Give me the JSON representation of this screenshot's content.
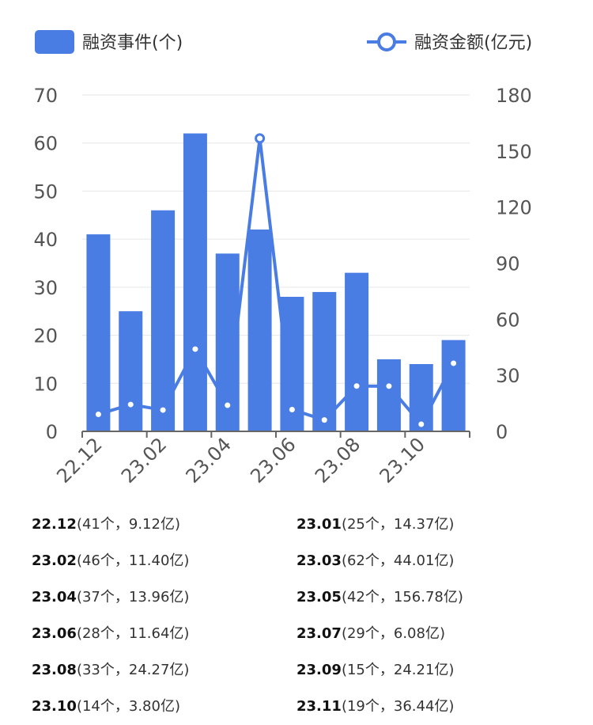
{
  "legend": {
    "bar_label": "融资事件(个)",
    "line_label": "融资金额(亿元)"
  },
  "colors": {
    "bar": "#4a7de3",
    "line": "#4a7de3",
    "grid": "#e6e6e6",
    "axis": "#666666"
  },
  "chart_data": {
    "type": "bar",
    "categories": [
      "22.12",
      "23.01",
      "23.02",
      "23.03",
      "23.04",
      "23.05",
      "23.06",
      "23.07",
      "23.08",
      "23.09",
      "23.10",
      "23.11"
    ],
    "x_tick_labels": [
      "22.12",
      "23.02",
      "23.04",
      "23.06",
      "23.08",
      "23.10"
    ],
    "series": [
      {
        "name": "融资事件(个)",
        "type": "bar",
        "axis": "left",
        "values": [
          41,
          25,
          46,
          62,
          37,
          42,
          28,
          29,
          33,
          15,
          14,
          19
        ]
      },
      {
        "name": "融资金额(亿元)",
        "type": "line",
        "axis": "right",
        "values": [
          9.12,
          14.37,
          11.4,
          44.01,
          13.96,
          156.78,
          11.64,
          6.08,
          24.27,
          24.21,
          3.8,
          36.44
        ]
      }
    ],
    "y_left": {
      "ylim": [
        0,
        70
      ],
      "ticks": [
        0,
        10,
        20,
        30,
        40,
        50,
        60,
        70
      ]
    },
    "y_right": {
      "ylim": [
        0,
        180
      ],
      "ticks": [
        0,
        30,
        60,
        90,
        120,
        150,
        180
      ]
    },
    "legend_position": "top",
    "grid": true
  },
  "list": [
    {
      "month": "22.12",
      "detail": "(41个，9.12亿)"
    },
    {
      "month": "23.01",
      "detail": "(25个，14.37亿)"
    },
    {
      "month": "23.02",
      "detail": "(46个，11.40亿)"
    },
    {
      "month": "23.03",
      "detail": "(62个，44.01亿)"
    },
    {
      "month": "23.04",
      "detail": "(37个，13.96亿)"
    },
    {
      "month": "23.05",
      "detail": "(42个，156.78亿)"
    },
    {
      "month": "23.06",
      "detail": "(28个，11.64亿)"
    },
    {
      "month": "23.07",
      "detail": "(29个，6.08亿)"
    },
    {
      "month": "23.08",
      "detail": "(33个，24.27亿)"
    },
    {
      "month": "23.09",
      "detail": "(15个，24.21亿)"
    },
    {
      "month": "23.10",
      "detail": "(14个，3.80亿)"
    },
    {
      "month": "23.11",
      "detail": "(19个，36.44亿)"
    }
  ]
}
